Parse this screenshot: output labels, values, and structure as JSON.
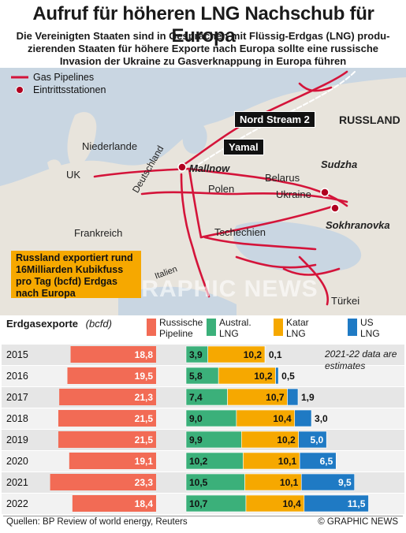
{
  "header": {
    "title": "Aufruf für höheren LNG Nachschub für Europa",
    "subtitle_line1": "Die Vereinigten Staaten sind in Gesprächen mit Flüssig-Erdgas (LNG) produ-",
    "subtitle_line2": "zierenden Staaten für höhere Exporte nach Europa sollte eine russische",
    "subtitle_line3": "Invasion der Ukraine zu Gasverknappung in Europa führen"
  },
  "map": {
    "legend_pipelines": "Gas Pipelines",
    "legend_stations": "Eintrittsstationen",
    "tag_nordstream": "Nord Stream 2",
    "tag_yamal": "Yamal",
    "labels": {
      "russland": "RUSSLAND",
      "niederlande": "Niederlande",
      "uk": "UK",
      "deutschland": "Deutschland",
      "mallnow": "Mallnow",
      "belarus": "Belarus",
      "sudzha": "Sudzha",
      "polen": "Polen",
      "ukraine": "Ukraine",
      "sokhranovka": "Sokhranovka",
      "frankreich": "Frankreich",
      "tschechien": "Tschechien",
      "italien": "Italien",
      "tuerkei": "Türkei"
    },
    "callout": "Russland exportiert rund 16Milliarden Kubikfuss pro Tag (bcfd) Erdgas nach Europa",
    "watermark": "GRAPHIC NEWS"
  },
  "chart_data": {
    "type": "bar",
    "title": "Erdgasexporte",
    "unit": "(bcfd)",
    "note": "2021-22 data are estimates",
    "categories": [
      "2015",
      "2016",
      "2017",
      "2018",
      "2019",
      "2020",
      "2021",
      "2022"
    ],
    "series": [
      {
        "name": "Russische Pipeline",
        "color": "#f26b55",
        "values": [
          18.8,
          19.5,
          21.3,
          21.5,
          21.5,
          19.1,
          23.3,
          18.4
        ]
      },
      {
        "name": "Austral. LNG",
        "color": "#3bb07a",
        "values": [
          3.9,
          5.8,
          7.4,
          9.0,
          9.9,
          10.2,
          10.5,
          10.7
        ]
      },
      {
        "name": "Katar LNG",
        "color": "#f6a800",
        "values": [
          10.2,
          10.2,
          10.7,
          10.4,
          10.2,
          10.1,
          10.1,
          10.4
        ]
      },
      {
        "name": "US LNG",
        "color": "#1f7ac4",
        "values": [
          0.1,
          0.5,
          1.9,
          3.0,
          5.0,
          6.5,
          9.5,
          11.5
        ]
      }
    ],
    "value_labels": {
      "Russische Pipeline": [
        "18,8",
        "19,5",
        "21,3",
        "21,5",
        "21,5",
        "19,1",
        "23,3",
        "18,4"
      ],
      "Austral. LNG": [
        "3,9",
        "5,8",
        "7,4",
        "9,0",
        "9,9",
        "10,2",
        "10,5",
        "10,7"
      ],
      "Katar LNG": [
        "10,2",
        "10,2",
        "10,7",
        "10,4",
        "10,2",
        "10,1",
        "10,1",
        "10,4"
      ],
      "US LNG": [
        "0,1",
        "0,5",
        "1,9",
        "3,0",
        "5,0",
        "6,5",
        "9,5",
        "11,5"
      ]
    },
    "legend": [
      {
        "line1": "Russische",
        "line2": "Pipeline"
      },
      {
        "line1": "Austral.",
        "line2": "LNG"
      },
      {
        "line1": "Katar",
        "line2": "LNG"
      },
      {
        "line1": "US",
        "line2": "LNG"
      }
    ]
  },
  "footer": {
    "sources": "Quellen: BP Review of world energy, Reuters",
    "credit": "© GRAPHIC NEWS"
  }
}
